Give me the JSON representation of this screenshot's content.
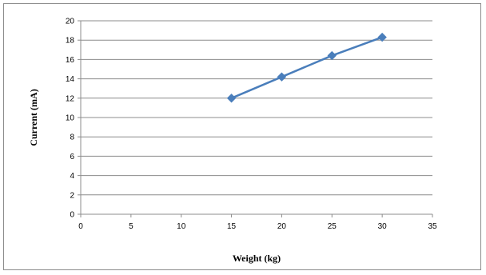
{
  "chart_data": {
    "type": "scatter",
    "title": "",
    "xlabel": "Weight (kg)",
    "ylabel": "Current (mA)",
    "xlim": [
      0,
      35
    ],
    "ylim": [
      0,
      20
    ],
    "x_ticks": [
      0,
      5,
      10,
      15,
      20,
      25,
      30,
      35
    ],
    "y_ticks": [
      0,
      2,
      4,
      6,
      8,
      10,
      12,
      14,
      16,
      18,
      20
    ],
    "grid": "horizontal",
    "legend": "none",
    "series": [
      {
        "x": [
          15,
          20,
          25,
          30
        ],
        "y": [
          12.0,
          14.2,
          16.4,
          18.3
        ],
        "color": "#4a7ebb",
        "marker": "diamond",
        "line": "straight"
      }
    ]
  }
}
